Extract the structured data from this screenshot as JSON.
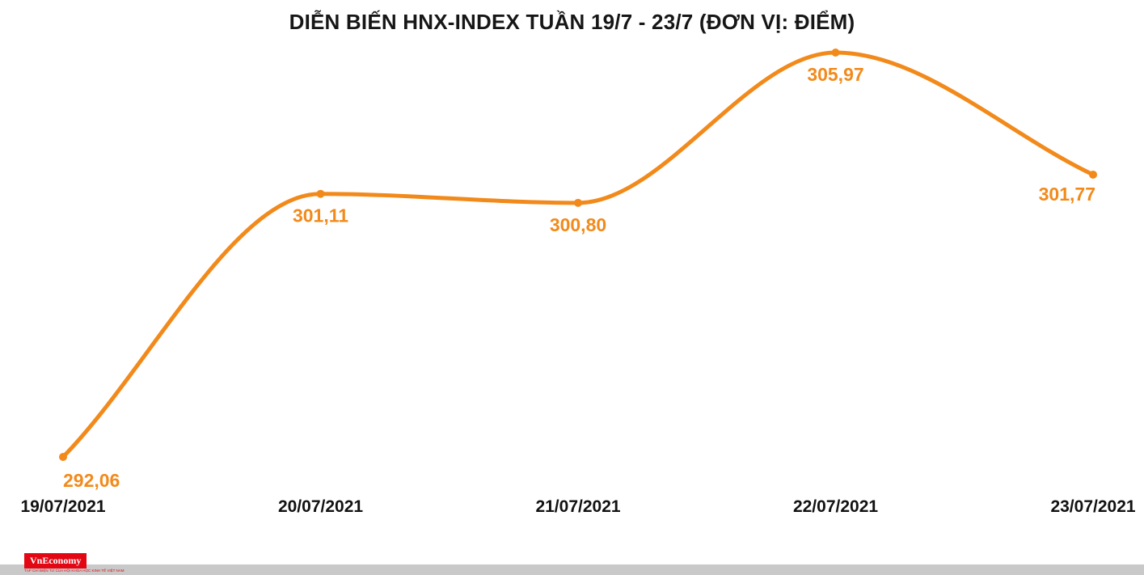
{
  "chart_data": {
    "type": "line",
    "title": "DIỄN BIẾN HNX-INDEX TUẦN 19/7 - 23/7 (ĐƠN VỊ: ĐIỂM)",
    "categories": [
      "19/07/2021",
      "20/07/2021",
      "21/07/2021",
      "22/07/2021",
      "23/07/2021"
    ],
    "values": [
      292.06,
      301.11,
      300.8,
      305.97,
      301.77
    ],
    "value_labels": [
      "292,06",
      "301,11",
      "300,80",
      "305,97",
      "301,77"
    ],
    "label_positions": [
      "below-start",
      "below",
      "below",
      "below",
      "below-end"
    ],
    "series_name": "HNX-Index",
    "line_color": "#F28A1B",
    "marker_color": "#F28A1B",
    "value_label_color": "#F28A1B",
    "axis_label_color": "#111111",
    "grid": false,
    "legend": "none",
    "y_axis": "hidden",
    "ylim": [
      292.06,
      305.97
    ]
  },
  "footer": {
    "logo_text": "VnEconomy",
    "logo_color": "#E30613",
    "tagline": "TẠP CHÍ ĐIỆN TỬ CỦA HỘI KHOA HỌC KINH TẾ VIỆT NAM",
    "bar_color": "#C9C9C9"
  }
}
